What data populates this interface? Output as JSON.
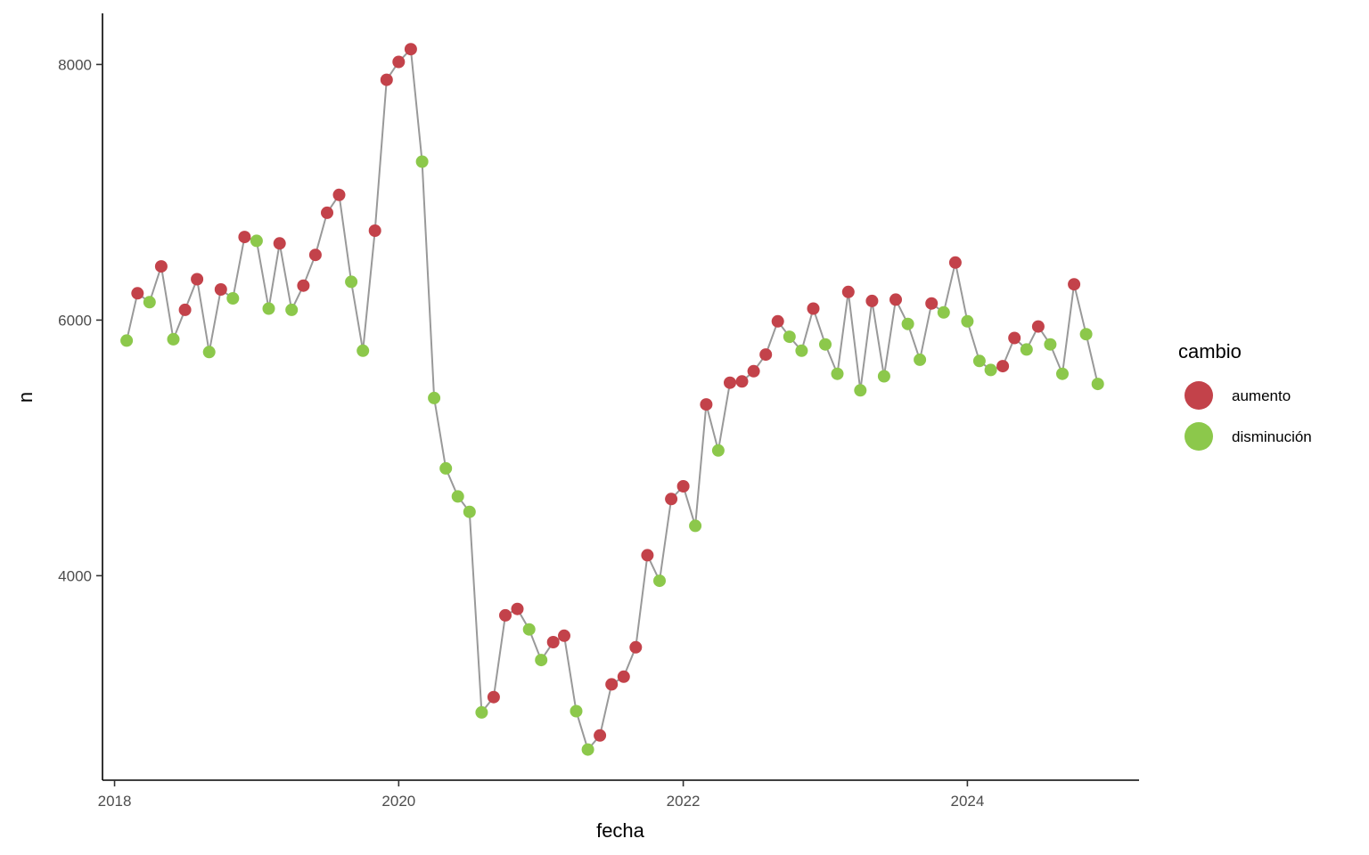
{
  "chart_data": {
    "type": "scatter",
    "title": "",
    "xlabel": "fecha",
    "ylabel": "n",
    "x_ticks": [
      "2018",
      "2020",
      "2022",
      "2024"
    ],
    "y_ticks": [
      "4000",
      "6000",
      "8000"
    ],
    "xlim": [
      "2017-12-01",
      "2025-03-17"
    ],
    "ylim": [
      2400,
      8400
    ],
    "grid": false,
    "legend_placement": "right",
    "legend": {
      "title": "cambio",
      "entries": [
        {
          "label": "aumento",
          "color": "#C3424A"
        },
        {
          "label": "disminución",
          "color": "#8CC84B"
        }
      ]
    },
    "line_color": "#999999",
    "points": [
      {
        "x": "2018-02",
        "y": 5840,
        "cambio": "disminución"
      },
      {
        "x": "2018-03",
        "y": 6210,
        "cambio": "aumento"
      },
      {
        "x": "2018-04",
        "y": 6140,
        "cambio": "disminución"
      },
      {
        "x": "2018-05",
        "y": 6420,
        "cambio": "aumento"
      },
      {
        "x": "2018-06",
        "y": 5850,
        "cambio": "disminución"
      },
      {
        "x": "2018-07",
        "y": 6080,
        "cambio": "aumento"
      },
      {
        "x": "2018-08",
        "y": 6320,
        "cambio": "aumento"
      },
      {
        "x": "2018-09",
        "y": 5750,
        "cambio": "disminución"
      },
      {
        "x": "2018-10",
        "y": 6240,
        "cambio": "aumento"
      },
      {
        "x": "2018-11",
        "y": 6170,
        "cambio": "disminución"
      },
      {
        "x": "2018-12",
        "y": 6650,
        "cambio": "aumento"
      },
      {
        "x": "2019-01",
        "y": 6620,
        "cambio": "disminución"
      },
      {
        "x": "2019-02",
        "y": 6090,
        "cambio": "disminución"
      },
      {
        "x": "2019-03",
        "y": 6600,
        "cambio": "aumento"
      },
      {
        "x": "2019-04",
        "y": 6080,
        "cambio": "disminución"
      },
      {
        "x": "2019-05",
        "y": 6270,
        "cambio": "aumento"
      },
      {
        "x": "2019-06",
        "y": 6510,
        "cambio": "aumento"
      },
      {
        "x": "2019-07",
        "y": 6840,
        "cambio": "aumento"
      },
      {
        "x": "2019-08",
        "y": 6980,
        "cambio": "aumento"
      },
      {
        "x": "2019-09",
        "y": 6300,
        "cambio": "disminución"
      },
      {
        "x": "2019-10",
        "y": 5760,
        "cambio": "disminución"
      },
      {
        "x": "2019-11",
        "y": 6700,
        "cambio": "aumento"
      },
      {
        "x": "2019-12",
        "y": 7880,
        "cambio": "aumento"
      },
      {
        "x": "2020-01",
        "y": 8020,
        "cambio": "aumento"
      },
      {
        "x": "2020-02",
        "y": 8120,
        "cambio": "aumento"
      },
      {
        "x": "2020-03",
        "y": 7240,
        "cambio": "disminución"
      },
      {
        "x": "2020-04",
        "y": 5390,
        "cambio": "disminución"
      },
      {
        "x": "2020-05",
        "y": 4840,
        "cambio": "disminución"
      },
      {
        "x": "2020-06",
        "y": 4620,
        "cambio": "disminución"
      },
      {
        "x": "2020-07",
        "y": 4500,
        "cambio": "disminución"
      },
      {
        "x": "2020-08",
        "y": 2930,
        "cambio": "disminución"
      },
      {
        "x": "2020-09",
        "y": 3050,
        "cambio": "aumento"
      },
      {
        "x": "2020-10",
        "y": 3690,
        "cambio": "aumento"
      },
      {
        "x": "2020-11",
        "y": 3740,
        "cambio": "aumento"
      },
      {
        "x": "2020-12",
        "y": 3580,
        "cambio": "disminución"
      },
      {
        "x": "2021-01",
        "y": 3340,
        "cambio": "disminución"
      },
      {
        "x": "2021-02",
        "y": 3480,
        "cambio": "aumento"
      },
      {
        "x": "2021-03",
        "y": 3530,
        "cambio": "aumento"
      },
      {
        "x": "2021-04",
        "y": 2940,
        "cambio": "disminución"
      },
      {
        "x": "2021-05",
        "y": 2640,
        "cambio": "disminución"
      },
      {
        "x": "2021-06",
        "y": 2750,
        "cambio": "aumento"
      },
      {
        "x": "2021-07",
        "y": 3150,
        "cambio": "aumento"
      },
      {
        "x": "2021-08",
        "y": 3210,
        "cambio": "aumento"
      },
      {
        "x": "2021-09",
        "y": 3440,
        "cambio": "aumento"
      },
      {
        "x": "2021-10",
        "y": 4160,
        "cambio": "aumento"
      },
      {
        "x": "2021-11",
        "y": 3960,
        "cambio": "disminución"
      },
      {
        "x": "2021-12",
        "y": 4600,
        "cambio": "aumento"
      },
      {
        "x": "2022-01",
        "y": 4700,
        "cambio": "aumento"
      },
      {
        "x": "2022-02",
        "y": 4390,
        "cambio": "disminución"
      },
      {
        "x": "2022-03",
        "y": 5340,
        "cambio": "aumento"
      },
      {
        "x": "2022-04",
        "y": 4980,
        "cambio": "disminución"
      },
      {
        "x": "2022-05",
        "y": 5510,
        "cambio": "aumento"
      },
      {
        "x": "2022-06",
        "y": 5520,
        "cambio": "aumento"
      },
      {
        "x": "2022-07",
        "y": 5600,
        "cambio": "aumento"
      },
      {
        "x": "2022-08",
        "y": 5730,
        "cambio": "aumento"
      },
      {
        "x": "2022-09",
        "y": 5990,
        "cambio": "aumento"
      },
      {
        "x": "2022-10",
        "y": 5870,
        "cambio": "disminución"
      },
      {
        "x": "2022-11",
        "y": 5760,
        "cambio": "disminución"
      },
      {
        "x": "2022-12",
        "y": 6090,
        "cambio": "aumento"
      },
      {
        "x": "2023-01",
        "y": 5810,
        "cambio": "disminución"
      },
      {
        "x": "2023-02",
        "y": 5580,
        "cambio": "disminución"
      },
      {
        "x": "2023-03",
        "y": 6220,
        "cambio": "aumento"
      },
      {
        "x": "2023-04",
        "y": 5450,
        "cambio": "disminución"
      },
      {
        "x": "2023-05",
        "y": 6150,
        "cambio": "aumento"
      },
      {
        "x": "2023-06",
        "y": 5560,
        "cambio": "disminución"
      },
      {
        "x": "2023-07",
        "y": 6160,
        "cambio": "aumento"
      },
      {
        "x": "2023-08",
        "y": 5970,
        "cambio": "disminución"
      },
      {
        "x": "2023-09",
        "y": 5690,
        "cambio": "disminución"
      },
      {
        "x": "2023-10",
        "y": 6130,
        "cambio": "aumento"
      },
      {
        "x": "2023-11",
        "y": 6060,
        "cambio": "disminución"
      },
      {
        "x": "2023-12",
        "y": 6450,
        "cambio": "aumento"
      },
      {
        "x": "2024-01",
        "y": 5990,
        "cambio": "disminución"
      },
      {
        "x": "2024-02",
        "y": 5680,
        "cambio": "disminución"
      },
      {
        "x": "2024-03",
        "y": 5610,
        "cambio": "disminución"
      },
      {
        "x": "2024-04",
        "y": 5640,
        "cambio": "aumento"
      },
      {
        "x": "2024-05",
        "y": 5860,
        "cambio": "aumento"
      },
      {
        "x": "2024-06",
        "y": 5770,
        "cambio": "disminución"
      },
      {
        "x": "2024-07",
        "y": 5950,
        "cambio": "aumento"
      },
      {
        "x": "2024-08",
        "y": 5810,
        "cambio": "disminución"
      },
      {
        "x": "2024-09",
        "y": 5580,
        "cambio": "disminución"
      },
      {
        "x": "2024-10",
        "y": 6280,
        "cambio": "aumento"
      },
      {
        "x": "2024-11",
        "y": 5890,
        "cambio": "disminución"
      },
      {
        "x": "2024-12",
        "y": 5500,
        "cambio": "disminución"
      }
    ]
  }
}
